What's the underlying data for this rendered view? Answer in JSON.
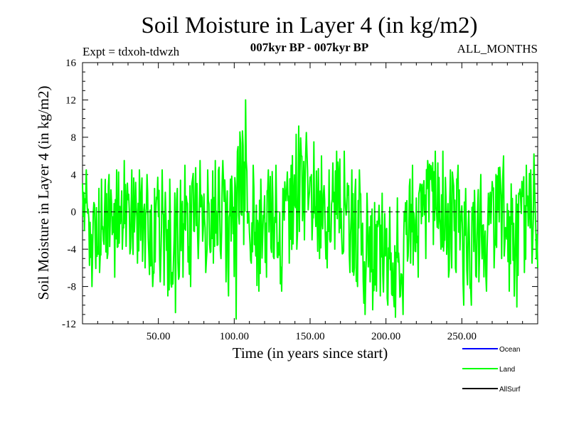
{
  "header": {
    "title": "Soil Moisture in Layer 4 (in kg/m2)",
    "experiment": "Expt = tdxoh-tdwzh",
    "period": "007kyr BP - 007kyr BP",
    "months": "ALL_MONTHS"
  },
  "chart_data": {
    "type": "line",
    "xlabel": "Time (in years since start)",
    "ylabel": "Soil Moisture in Layer 4 (in kg/m2)",
    "xlim": [
      0,
      300
    ],
    "ylim": [
      -12,
      16
    ],
    "x_ticks": [
      {
        "value": 50,
        "label": "50.00"
      },
      {
        "value": 100,
        "label": "100.00"
      },
      {
        "value": 150,
        "label": "150.00"
      },
      {
        "value": 200,
        "label": "200.00"
      },
      {
        "value": 250,
        "label": "250.00"
      }
    ],
    "y_ticks": [
      {
        "value": 16,
        "label": "16"
      },
      {
        "value": 12,
        "label": "12"
      },
      {
        "value": 8,
        "label": "8"
      },
      {
        "value": 4,
        "label": "4"
      },
      {
        "value": 0,
        "label": "0"
      },
      {
        "value": -4,
        "label": "-4"
      },
      {
        "value": -8,
        "label": "-8"
      },
      {
        "value": -12,
        "label": "-12"
      }
    ],
    "zero_line": true,
    "legend_position": "bottom-right",
    "legend": [
      {
        "name": "Ocean",
        "color": "#0000ff"
      },
      {
        "name": "Land",
        "color": "#00ff00"
      },
      {
        "name": "AllSurf",
        "color": "#000000"
      }
    ],
    "series": [
      {
        "name": "Land",
        "color": "#00ff00",
        "x": [
          0,
          5,
          10,
          15,
          20,
          25,
          30,
          35,
          40,
          45,
          50,
          55,
          60,
          65,
          70,
          75,
          80,
          85,
          90,
          95,
          100,
          105,
          110,
          115,
          120,
          125,
          130,
          135,
          140,
          145,
          150,
          155,
          160,
          165,
          170,
          175,
          180,
          185,
          190,
          195,
          200,
          205,
          210,
          215,
          220,
          225,
          230,
          235,
          240,
          245,
          250,
          255,
          260,
          265,
          270,
          275,
          280,
          285,
          290,
          295,
          300
        ],
        "y": [
          2.5,
          -3.5,
          -1.0,
          0.5,
          -1.5,
          1.0,
          0.5,
          -0.5,
          0.0,
          -3.0,
          -1.5,
          -2.5,
          -3.5,
          0.5,
          -1.0,
          1.5,
          -0.5,
          0.5,
          0.5,
          -1.5,
          -2.0,
          4.0,
          0.5,
          -2.5,
          -1.0,
          0.5,
          -3.5,
          -0.5,
          2.0,
          3.5,
          3.0,
          1.0,
          0.0,
          2.0,
          1.5,
          -0.5,
          -1.5,
          -3.5,
          -4.0,
          -3.0,
          -5.0,
          -4.0,
          -6.0,
          0.5,
          -1.0,
          1.0,
          2.5,
          2.0,
          -1.0,
          0.0,
          -3.5,
          -4.5,
          -1.0,
          -2.5,
          0.5,
          2.0,
          -1.5,
          -2.5,
          0.0,
          2.0,
          0.5
        ],
        "range_min": [
          -2.0,
          -8.0,
          -6.5,
          -5.0,
          -7.0,
          -4.0,
          -4.5,
          -5.5,
          -6.0,
          -8.0,
          -7.5,
          -9.0,
          -10.8,
          -7.0,
          -8.0,
          -5.0,
          -6.5,
          -5.5,
          -5.0,
          -9.0,
          -11.5,
          -3.5,
          -5.5,
          -8.5,
          -7.0,
          -5.0,
          -8.5,
          -5.5,
          -4.0,
          -3.0,
          -3.0,
          -5.0,
          -6.0,
          -4.0,
          -4.5,
          -6.5,
          -8.0,
          -11.0,
          -10.5,
          -9.0,
          -10.0,
          -11.3,
          -11.0,
          -5.5,
          -7.0,
          -5.0,
          -3.5,
          -4.0,
          -7.0,
          -6.5,
          -10.0,
          -10.0,
          -7.5,
          -8.5,
          -6.0,
          -5.0,
          -8.5,
          -10.2,
          -6.5,
          -5.5,
          -6.0
        ],
        "range_max": [
          4.5,
          1.0,
          3.5,
          4.0,
          4.5,
          5.5,
          4.5,
          4.5,
          4.0,
          2.5,
          4.5,
          3.5,
          2.5,
          5.0,
          3.5,
          5.5,
          4.5,
          5.5,
          5.5,
          3.5,
          7.0,
          12.0,
          5.0,
          3.5,
          4.5,
          5.0,
          2.0,
          5.0,
          9.2,
          8.5,
          7.5,
          6.0,
          4.5,
          6.5,
          6.5,
          4.5,
          4.5,
          2.0,
          1.0,
          2.0,
          0.5,
          1.5,
          -1.0,
          5.0,
          3.0,
          5.5,
          6.5,
          6.5,
          4.5,
          5.0,
          2.5,
          1.0,
          4.0,
          2.0,
          4.0,
          6.0,
          3.0,
          2.0,
          5.0,
          6.2,
          5.0
        ]
      }
    ]
  }
}
